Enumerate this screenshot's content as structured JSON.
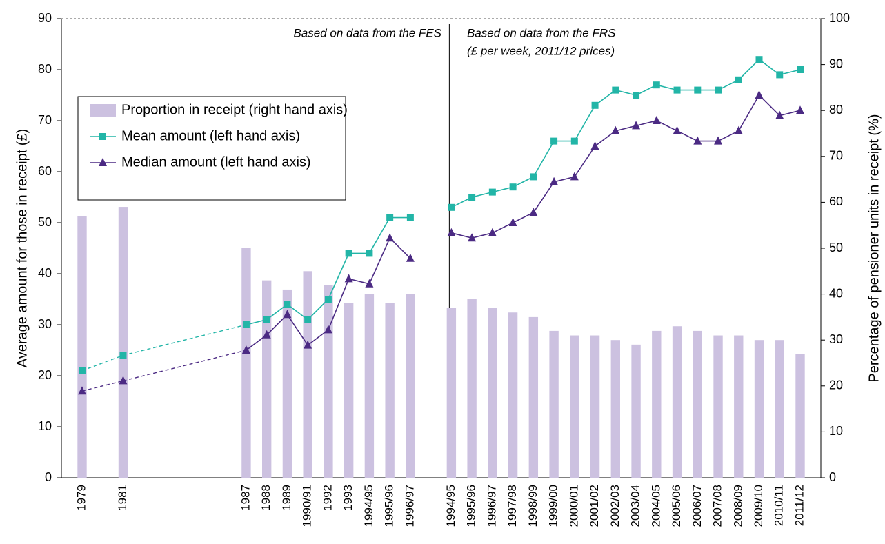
{
  "chart_data": {
    "type": "combo",
    "categories": [
      "1979",
      null,
      "1981",
      null,
      null,
      null,
      null,
      null,
      "1987",
      "1988",
      "1989",
      "1990/91",
      "1992",
      "1993",
      "1994/95",
      "1995/96",
      "1996/97",
      null,
      "1994/95",
      "1995/96",
      "1996/97",
      "1997/98",
      "1998/99",
      "1999/00",
      "2000/01",
      "2001/02",
      "2002/03",
      "2003/04",
      "2004/05",
      "2005/06",
      "2006/07",
      "2007/08",
      "2008/09",
      "2009/10",
      "2010/11",
      "2011/12"
    ],
    "series": [
      {
        "name": "Proportion in receipt (right hand axis)",
        "type": "bar",
        "axis": "y2",
        "color": "#ccc1e0",
        "values": [
          57,
          null,
          59,
          null,
          null,
          null,
          null,
          null,
          50,
          43,
          41,
          45,
          42,
          38,
          40,
          38,
          40,
          null,
          37,
          39,
          37,
          36,
          35,
          32,
          31,
          31,
          30,
          29,
          32,
          33,
          32,
          31,
          31,
          30,
          30,
          27
        ]
      },
      {
        "name": "Mean amount (left hand axis)",
        "type": "line",
        "marker": "square",
        "color": "#22b5a7",
        "values": [
          21,
          null,
          24,
          null,
          null,
          null,
          null,
          null,
          30,
          31,
          34,
          31,
          35,
          44,
          44,
          51,
          51,
          null,
          53,
          55,
          56,
          57,
          59,
          66,
          66,
          73,
          76,
          75,
          77,
          76,
          76,
          76,
          78,
          82,
          79,
          80
        ]
      },
      {
        "name": "Median amount (left hand axis)",
        "type": "line",
        "marker": "triangle",
        "color": "#4b2a83",
        "values": [
          17,
          null,
          19,
          null,
          null,
          null,
          null,
          null,
          25,
          28,
          32,
          26,
          29,
          39,
          38,
          47,
          43,
          null,
          48,
          47,
          48,
          50,
          52,
          58,
          59,
          65,
          68,
          69,
          70,
          68,
          66,
          66,
          68,
          75,
          71,
          72
        ]
      }
    ],
    "y_label": "Average amount for those in receipt (£)",
    "y2_label": "Percentage of pensioner units in receipt (%)",
    "ylim": [
      0,
      90
    ],
    "yticks": [
      0,
      10,
      20,
      30,
      40,
      50,
      60,
      70,
      80,
      90
    ],
    "y2lim": [
      0,
      100
    ],
    "y2ticks": [
      0,
      10,
      20,
      30,
      40,
      50,
      60,
      70,
      80,
      90,
      100
    ],
    "annotations": [
      "Based on data from the FES",
      "Based on data from the FRS",
      "(£ per week, 2011/12 prices)"
    ],
    "legend": "upper left",
    "grid": false
  }
}
